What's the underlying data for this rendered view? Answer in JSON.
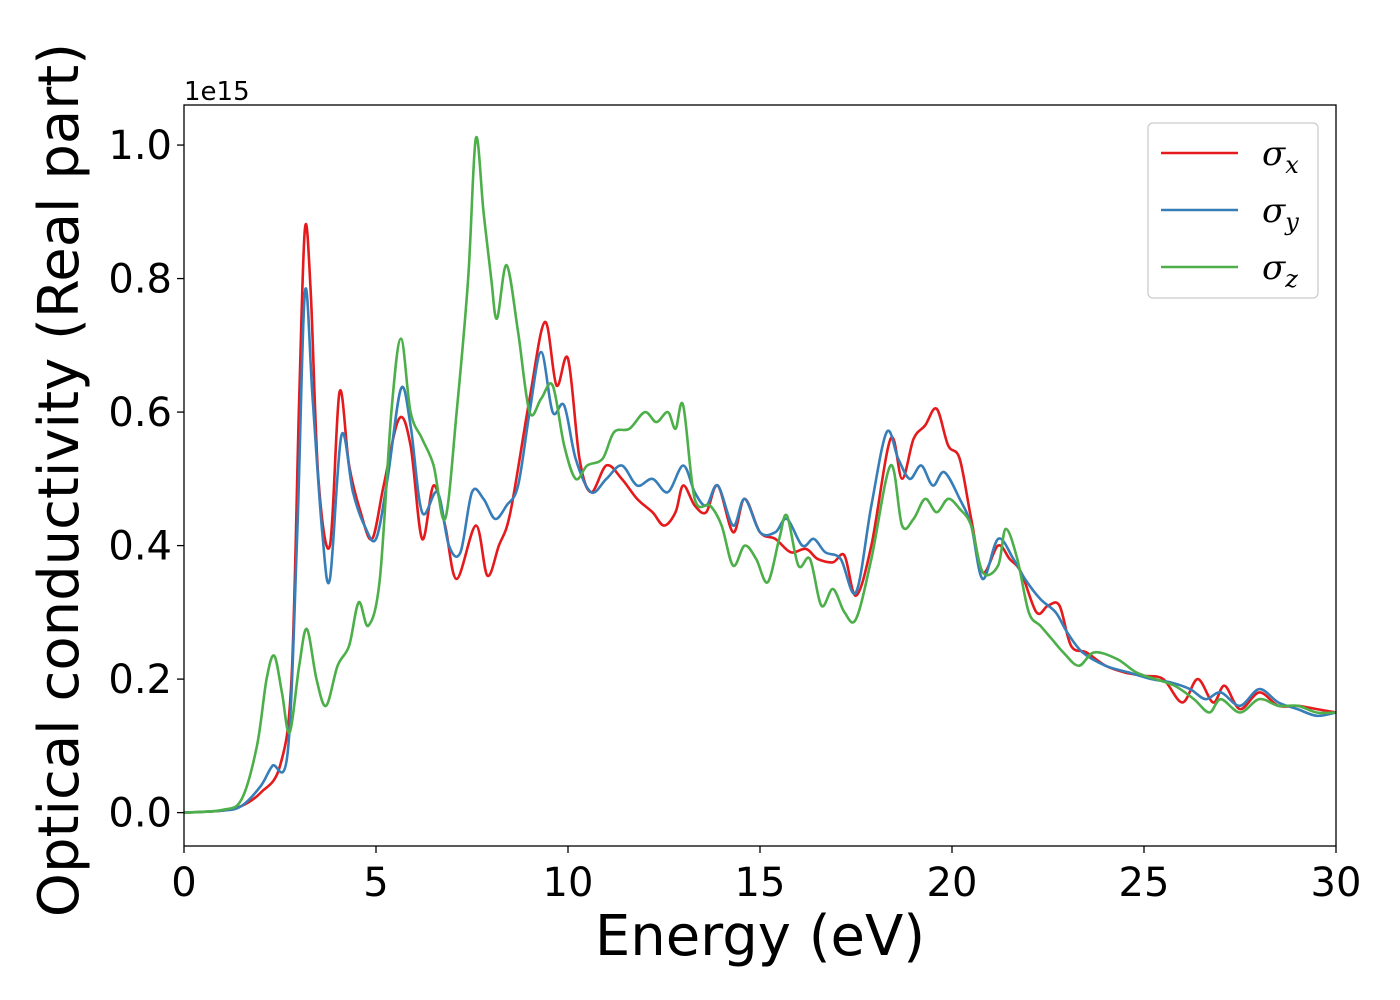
{
  "chart_data": {
    "type": "line",
    "xlabel": "Energy (eV)",
    "ylabel": "Optical conductivity (Real part)",
    "y_offset_text": "1e15",
    "xlim": [
      0,
      30
    ],
    "ylim": [
      -0.05,
      1.06
    ],
    "xticks": [
      0,
      5,
      10,
      15,
      20,
      25,
      30
    ],
    "xtick_labels": [
      "0",
      "5",
      "10",
      "15",
      "20",
      "25",
      "30"
    ],
    "yticks": [
      0.0,
      0.2,
      0.4,
      0.6,
      0.8,
      1.0
    ],
    "ytick_labels": [
      "0.0",
      "0.2",
      "0.4",
      "0.6",
      "0.8",
      "1.0"
    ],
    "grid": false,
    "legend_position": "top-right",
    "series": [
      {
        "name": "σx",
        "name_base": "σ",
        "name_sub": "x",
        "color": "#e41a1c",
        "points": [
          [
            0,
            0
          ],
          [
            1,
            0.003
          ],
          [
            1.5,
            0.01
          ],
          [
            2,
            0.03
          ],
          [
            2.5,
            0.07
          ],
          [
            2.8,
            0.2
          ],
          [
            3.0,
            0.62
          ],
          [
            3.15,
            0.875
          ],
          [
            3.3,
            0.78
          ],
          [
            3.5,
            0.5
          ],
          [
            3.8,
            0.4
          ],
          [
            4.05,
            0.63
          ],
          [
            4.3,
            0.52
          ],
          [
            4.6,
            0.45
          ],
          [
            4.9,
            0.41
          ],
          [
            5.2,
            0.49
          ],
          [
            5.6,
            0.59
          ],
          [
            5.9,
            0.55
          ],
          [
            6.2,
            0.41
          ],
          [
            6.5,
            0.49
          ],
          [
            6.8,
            0.43
          ],
          [
            7.1,
            0.35
          ],
          [
            7.6,
            0.43
          ],
          [
            7.9,
            0.355
          ],
          [
            8.2,
            0.4
          ],
          [
            8.5,
            0.45
          ],
          [
            9.0,
            0.62
          ],
          [
            9.4,
            0.735
          ],
          [
            9.7,
            0.64
          ],
          [
            10.0,
            0.68
          ],
          [
            10.3,
            0.53
          ],
          [
            10.6,
            0.48
          ],
          [
            11.0,
            0.52
          ],
          [
            11.4,
            0.5
          ],
          [
            11.8,
            0.47
          ],
          [
            12.2,
            0.45
          ],
          [
            12.5,
            0.43
          ],
          [
            12.8,
            0.45
          ],
          [
            13.0,
            0.49
          ],
          [
            13.3,
            0.46
          ],
          [
            13.6,
            0.45
          ],
          [
            13.9,
            0.49
          ],
          [
            14.3,
            0.42
          ],
          [
            14.6,
            0.47
          ],
          [
            15.0,
            0.42
          ],
          [
            15.4,
            0.41
          ],
          [
            15.8,
            0.39
          ],
          [
            16.2,
            0.395
          ],
          [
            16.5,
            0.38
          ],
          [
            16.9,
            0.375
          ],
          [
            17.2,
            0.385
          ],
          [
            17.5,
            0.325
          ],
          [
            17.9,
            0.4
          ],
          [
            18.4,
            0.56
          ],
          [
            18.7,
            0.5
          ],
          [
            19.0,
            0.56
          ],
          [
            19.3,
            0.58
          ],
          [
            19.6,
            0.605
          ],
          [
            19.9,
            0.55
          ],
          [
            20.2,
            0.53
          ],
          [
            20.5,
            0.44
          ],
          [
            20.8,
            0.36
          ],
          [
            21.2,
            0.4
          ],
          [
            21.5,
            0.38
          ],
          [
            21.8,
            0.36
          ],
          [
            22.2,
            0.3
          ],
          [
            22.5,
            0.31
          ],
          [
            22.8,
            0.31
          ],
          [
            23.1,
            0.25
          ],
          [
            23.5,
            0.24
          ],
          [
            24.0,
            0.22
          ],
          [
            24.5,
            0.21
          ],
          [
            25.0,
            0.205
          ],
          [
            25.5,
            0.2
          ],
          [
            26.0,
            0.165
          ],
          [
            26.4,
            0.2
          ],
          [
            26.8,
            0.165
          ],
          [
            27.1,
            0.19
          ],
          [
            27.5,
            0.155
          ],
          [
            28.0,
            0.18
          ],
          [
            28.5,
            0.16
          ],
          [
            29.0,
            0.16
          ],
          [
            29.5,
            0.155
          ],
          [
            30,
            0.15
          ]
        ]
      },
      {
        "name": "σy",
        "name_base": "σ",
        "name_sub": "y",
        "color": "#377eb8",
        "points": [
          [
            0,
            0
          ],
          [
            1,
            0.003
          ],
          [
            1.5,
            0.01
          ],
          [
            2,
            0.04
          ],
          [
            2.3,
            0.07
          ],
          [
            2.7,
            0.09
          ],
          [
            2.95,
            0.42
          ],
          [
            3.15,
            0.78
          ],
          [
            3.35,
            0.62
          ],
          [
            3.6,
            0.42
          ],
          [
            3.8,
            0.35
          ],
          [
            4.1,
            0.565
          ],
          [
            4.4,
            0.48
          ],
          [
            4.7,
            0.43
          ],
          [
            5.0,
            0.41
          ],
          [
            5.3,
            0.5
          ],
          [
            5.65,
            0.635
          ],
          [
            5.9,
            0.58
          ],
          [
            6.2,
            0.45
          ],
          [
            6.6,
            0.48
          ],
          [
            6.9,
            0.4
          ],
          [
            7.2,
            0.39
          ],
          [
            7.5,
            0.48
          ],
          [
            7.8,
            0.47
          ],
          [
            8.1,
            0.44
          ],
          [
            8.4,
            0.46
          ],
          [
            8.7,
            0.49
          ],
          [
            9.0,
            0.6
          ],
          [
            9.3,
            0.69
          ],
          [
            9.6,
            0.6
          ],
          [
            9.9,
            0.61
          ],
          [
            10.2,
            0.53
          ],
          [
            10.6,
            0.48
          ],
          [
            11.0,
            0.5
          ],
          [
            11.4,
            0.52
          ],
          [
            11.8,
            0.49
          ],
          [
            12.2,
            0.5
          ],
          [
            12.6,
            0.48
          ],
          [
            13.0,
            0.52
          ],
          [
            13.3,
            0.48
          ],
          [
            13.6,
            0.46
          ],
          [
            13.9,
            0.49
          ],
          [
            14.3,
            0.43
          ],
          [
            14.6,
            0.47
          ],
          [
            15.0,
            0.42
          ],
          [
            15.4,
            0.42
          ],
          [
            15.7,
            0.44
          ],
          [
            16.1,
            0.4
          ],
          [
            16.4,
            0.41
          ],
          [
            16.7,
            0.39
          ],
          [
            17.1,
            0.38
          ],
          [
            17.5,
            0.33
          ],
          [
            17.9,
            0.46
          ],
          [
            18.3,
            0.57
          ],
          [
            18.6,
            0.53
          ],
          [
            18.9,
            0.5
          ],
          [
            19.2,
            0.52
          ],
          [
            19.5,
            0.49
          ],
          [
            19.8,
            0.51
          ],
          [
            20.2,
            0.47
          ],
          [
            20.5,
            0.43
          ],
          [
            20.8,
            0.35
          ],
          [
            21.2,
            0.41
          ],
          [
            21.6,
            0.38
          ],
          [
            21.9,
            0.35
          ],
          [
            22.3,
            0.32
          ],
          [
            22.7,
            0.3
          ],
          [
            23.0,
            0.27
          ],
          [
            23.4,
            0.24
          ],
          [
            24.0,
            0.22
          ],
          [
            24.6,
            0.21
          ],
          [
            25.2,
            0.2
          ],
          [
            25.7,
            0.195
          ],
          [
            26.2,
            0.185
          ],
          [
            26.6,
            0.17
          ],
          [
            27.0,
            0.18
          ],
          [
            27.5,
            0.16
          ],
          [
            28.0,
            0.185
          ],
          [
            28.5,
            0.165
          ],
          [
            29.0,
            0.155
          ],
          [
            29.5,
            0.145
          ],
          [
            30,
            0.15
          ]
        ]
      },
      {
        "name": "σz",
        "name_base": "σ",
        "name_sub": "z",
        "color": "#4daf4a",
        "points": [
          [
            0,
            0
          ],
          [
            1,
            0.004
          ],
          [
            1.5,
            0.02
          ],
          [
            1.9,
            0.1
          ],
          [
            2.15,
            0.2
          ],
          [
            2.35,
            0.235
          ],
          [
            2.55,
            0.18
          ],
          [
            2.75,
            0.12
          ],
          [
            3.0,
            0.22
          ],
          [
            3.2,
            0.275
          ],
          [
            3.45,
            0.2
          ],
          [
            3.7,
            0.16
          ],
          [
            4.0,
            0.22
          ],
          [
            4.3,
            0.25
          ],
          [
            4.55,
            0.315
          ],
          [
            4.8,
            0.28
          ],
          [
            5.1,
            0.35
          ],
          [
            5.4,
            0.6
          ],
          [
            5.65,
            0.71
          ],
          [
            5.9,
            0.6
          ],
          [
            6.2,
            0.56
          ],
          [
            6.5,
            0.52
          ],
          [
            6.8,
            0.44
          ],
          [
            7.1,
            0.6
          ],
          [
            7.4,
            0.8
          ],
          [
            7.6,
            1.01
          ],
          [
            7.8,
            0.9
          ],
          [
            8.0,
            0.8
          ],
          [
            8.15,
            0.74
          ],
          [
            8.4,
            0.82
          ],
          [
            8.7,
            0.72
          ],
          [
            9.0,
            0.6
          ],
          [
            9.3,
            0.62
          ],
          [
            9.6,
            0.64
          ],
          [
            9.9,
            0.55
          ],
          [
            10.2,
            0.5
          ],
          [
            10.5,
            0.52
          ],
          [
            10.9,
            0.53
          ],
          [
            11.2,
            0.57
          ],
          [
            11.6,
            0.575
          ],
          [
            12.0,
            0.6
          ],
          [
            12.3,
            0.585
          ],
          [
            12.6,
            0.6
          ],
          [
            12.8,
            0.575
          ],
          [
            13.0,
            0.61
          ],
          [
            13.3,
            0.47
          ],
          [
            13.7,
            0.46
          ],
          [
            14.0,
            0.43
          ],
          [
            14.3,
            0.37
          ],
          [
            14.6,
            0.4
          ],
          [
            14.9,
            0.38
          ],
          [
            15.2,
            0.345
          ],
          [
            15.5,
            0.41
          ],
          [
            15.7,
            0.445
          ],
          [
            16.0,
            0.37
          ],
          [
            16.3,
            0.38
          ],
          [
            16.6,
            0.31
          ],
          [
            16.9,
            0.335
          ],
          [
            17.2,
            0.3
          ],
          [
            17.5,
            0.29
          ],
          [
            17.9,
            0.38
          ],
          [
            18.4,
            0.52
          ],
          [
            18.7,
            0.43
          ],
          [
            19.0,
            0.44
          ],
          [
            19.3,
            0.47
          ],
          [
            19.6,
            0.45
          ],
          [
            19.9,
            0.47
          ],
          [
            20.2,
            0.455
          ],
          [
            20.5,
            0.43
          ],
          [
            20.8,
            0.36
          ],
          [
            21.2,
            0.37
          ],
          [
            21.4,
            0.425
          ],
          [
            21.7,
            0.38
          ],
          [
            22.0,
            0.3
          ],
          [
            22.3,
            0.28
          ],
          [
            22.6,
            0.26
          ],
          [
            22.9,
            0.24
          ],
          [
            23.3,
            0.22
          ],
          [
            23.7,
            0.24
          ],
          [
            24.3,
            0.23
          ],
          [
            24.8,
            0.21
          ],
          [
            25.3,
            0.2
          ],
          [
            25.8,
            0.19
          ],
          [
            26.3,
            0.17
          ],
          [
            26.7,
            0.15
          ],
          [
            27.0,
            0.17
          ],
          [
            27.5,
            0.15
          ],
          [
            28.0,
            0.17
          ],
          [
            28.5,
            0.16
          ],
          [
            29.0,
            0.16
          ],
          [
            29.5,
            0.15
          ],
          [
            30,
            0.15
          ]
        ]
      }
    ]
  }
}
